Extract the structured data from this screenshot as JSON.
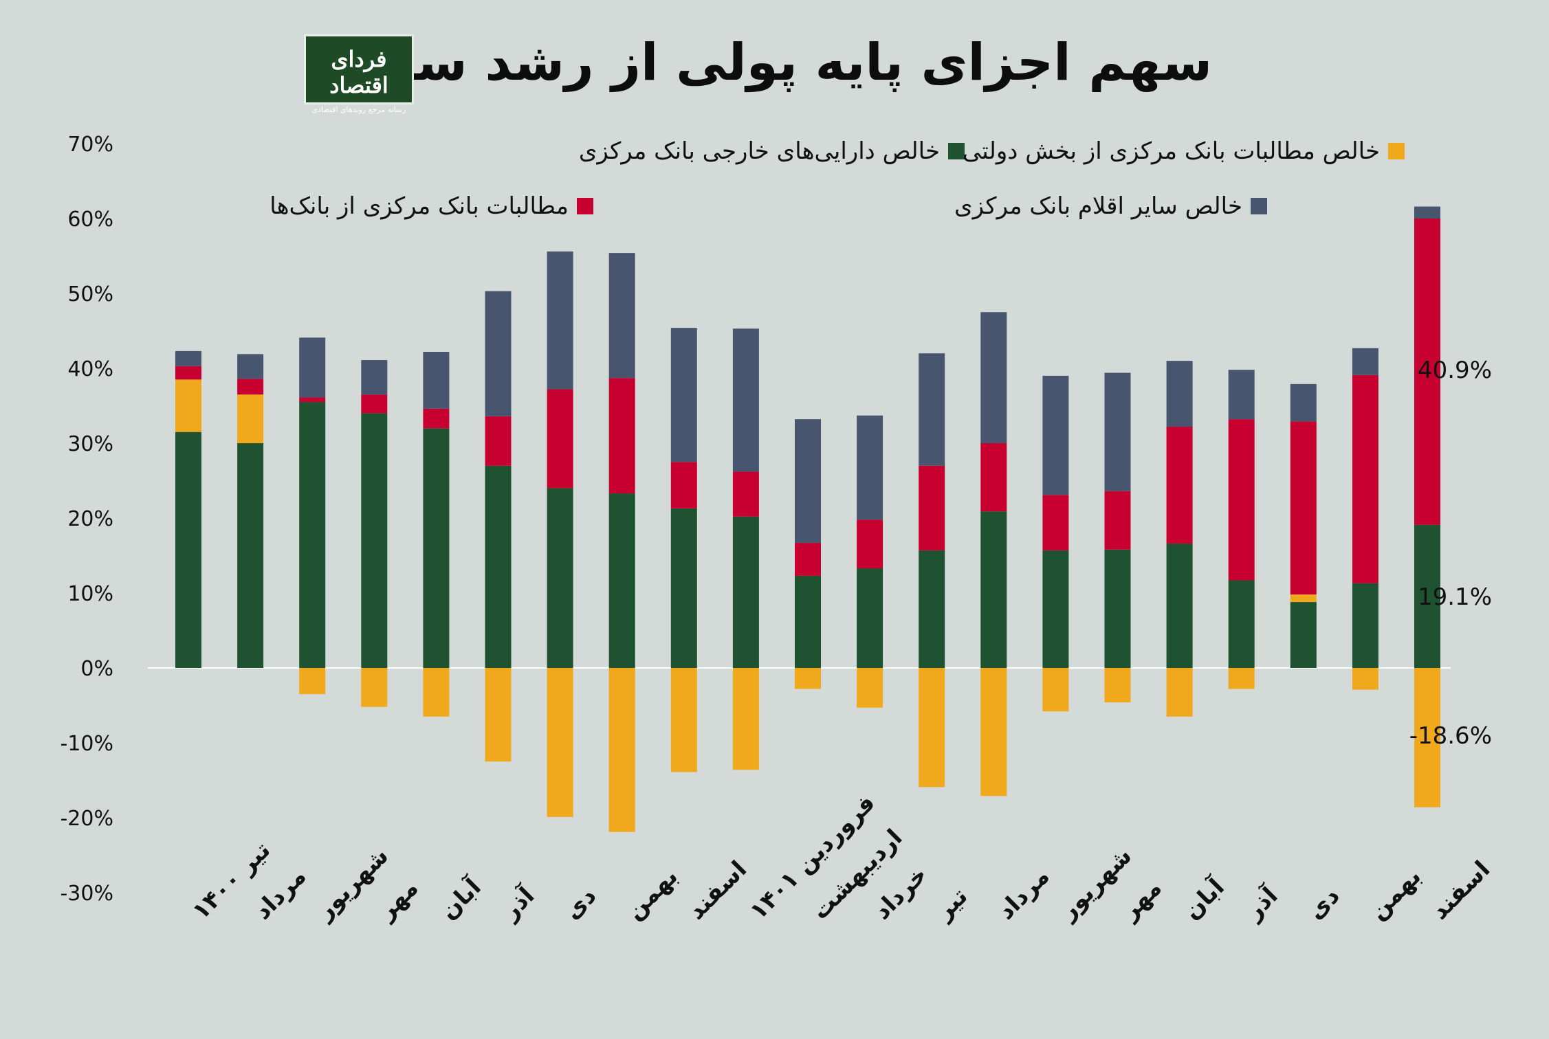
{
  "title": "سهم اجزای پایه پولی از رشد سالانه",
  "logo": {
    "name": "فردای اقتصاد",
    "tagline": "رسانه مرجع روندهای اقتصادی"
  },
  "colors": {
    "foreign": "#1e5230",
    "government": "#f0a81c",
    "banks": "#c8002f",
    "other": "#47566e",
    "background": "#d3dad8"
  },
  "chart_data": {
    "type": "bar",
    "stacked": true,
    "title": "سهم اجزای پایه پولی از رشد سالانه",
    "ylim": [
      -30,
      70
    ],
    "yticks": [
      "70%",
      "60%",
      "50%",
      "40%",
      "30%",
      "20%",
      "10%",
      "0%",
      "-10%",
      "-20%",
      "-30%"
    ],
    "ytick_values": [
      70,
      60,
      50,
      40,
      30,
      20,
      10,
      0,
      -10,
      -20,
      -30
    ],
    "categories": [
      "تیر ۱۴۰۰",
      "مرداد",
      "شهریور",
      "مهر",
      "آبان",
      "آذر",
      "دی",
      "بهمن",
      "اسفند",
      "فروردین ۱۴۰۱",
      "اردیبهشت",
      "خرداد",
      "تیر",
      "مرداد",
      "شهریور",
      "مهر",
      "آبان",
      "آذر",
      "دی",
      "بهمن",
      "اسفند"
    ],
    "series": [
      {
        "name": "خالص دارایی‌های خارجی بانک مرکزی",
        "color": "#1e5230",
        "values": [
          31.5,
          30.0,
          35.5,
          34.0,
          32.0,
          27.0,
          24.0,
          23.3,
          21.3,
          20.2,
          12.3,
          13.3,
          15.7,
          20.9,
          15.7,
          15.8,
          16.6,
          11.7,
          8.8,
          11.3,
          19.1
        ]
      },
      {
        "name": "خالص مطالبات بانک مرکزی از بخش دولتی",
        "color": "#f0a81c",
        "values": [
          7.0,
          6.5,
          -3.5,
          -5.2,
          -6.5,
          -12.5,
          -19.9,
          -21.9,
          -13.9,
          -13.6,
          -2.8,
          -5.3,
          -15.9,
          -17.1,
          -5.8,
          -4.6,
          -6.5,
          -2.8,
          1.0,
          -2.9,
          -18.6
        ]
      },
      {
        "name": "مطالبات بانک مرکزی از بانک‌ها",
        "color": "#c8002f",
        "values": [
          1.8,
          2.1,
          0.6,
          2.5,
          2.6,
          6.6,
          13.2,
          15.4,
          6.2,
          6.0,
          4.4,
          6.5,
          11.3,
          9.1,
          7.4,
          7.8,
          15.6,
          21.5,
          23.1,
          27.8,
          40.9
        ]
      },
      {
        "name": "خالص سایر اقلام بانک مرکزی",
        "color": "#47566e",
        "values": [
          2.0,
          3.3,
          8.0,
          4.6,
          7.6,
          16.7,
          18.4,
          16.7,
          17.9,
          19.1,
          16.5,
          13.9,
          15.0,
          17.5,
          15.9,
          15.8,
          8.8,
          6.6,
          5.0,
          3.6,
          1.6
        ]
      }
    ],
    "annotations": [
      "40.9%",
      "19.1%",
      "-18.6%"
    ],
    "legend_position": "top"
  }
}
